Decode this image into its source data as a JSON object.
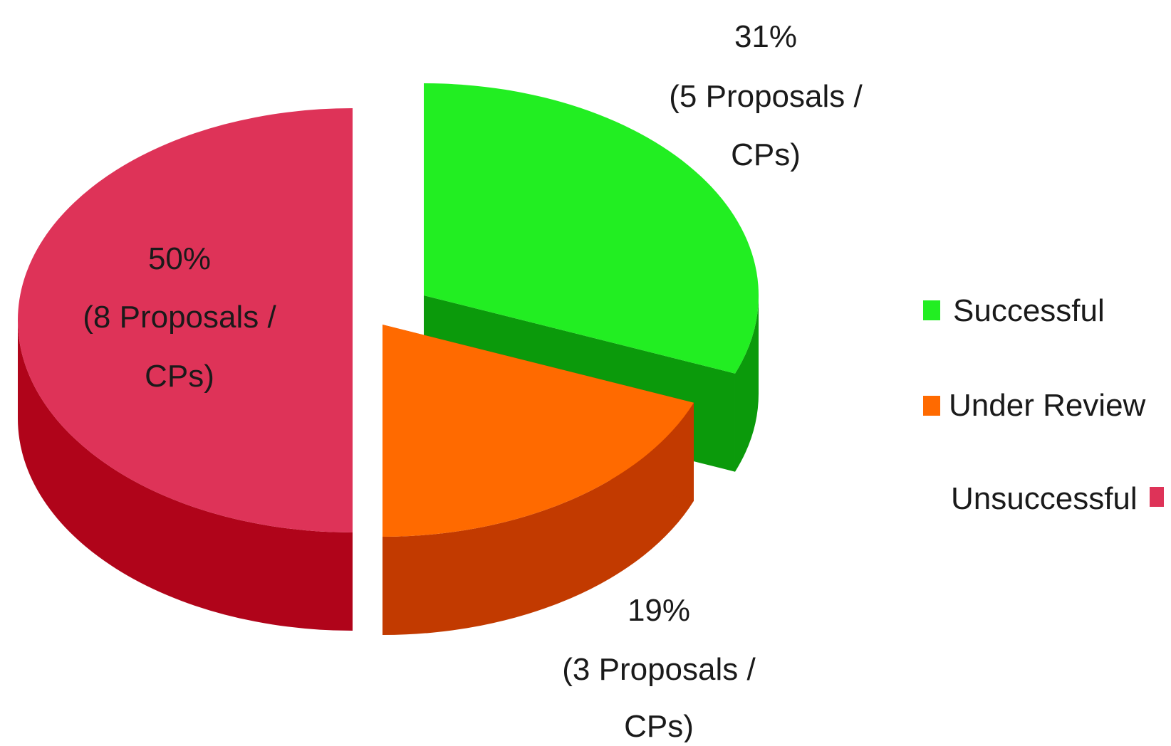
{
  "chart_data": {
    "type": "pie",
    "title": "",
    "slices": [
      {
        "name": "Successful",
        "percent": 31,
        "count_text": "(5 Proposals /",
        "unit_text": "CPs)",
        "label": "31%",
        "color": "#22ee22",
        "side_color": "#0b9a0b"
      },
      {
        "name": "Under Review",
        "percent": 19,
        "count_text": "(3 Proposals /",
        "unit_text": "CPs)",
        "label": "19%",
        "color": "#ff6a00",
        "side_color": "#c23a00"
      },
      {
        "name": "Unsuccessful",
        "percent": 50,
        "count_text": "(8 Proposals /",
        "unit_text": "CPs)",
        "label": "50%",
        "color": "#de3358",
        "side_color": "#b0041a"
      }
    ],
    "legend": {
      "position": "right",
      "items": [
        "Successful",
        "Under Review",
        "Unsuccessful"
      ]
    },
    "exploded": true
  }
}
